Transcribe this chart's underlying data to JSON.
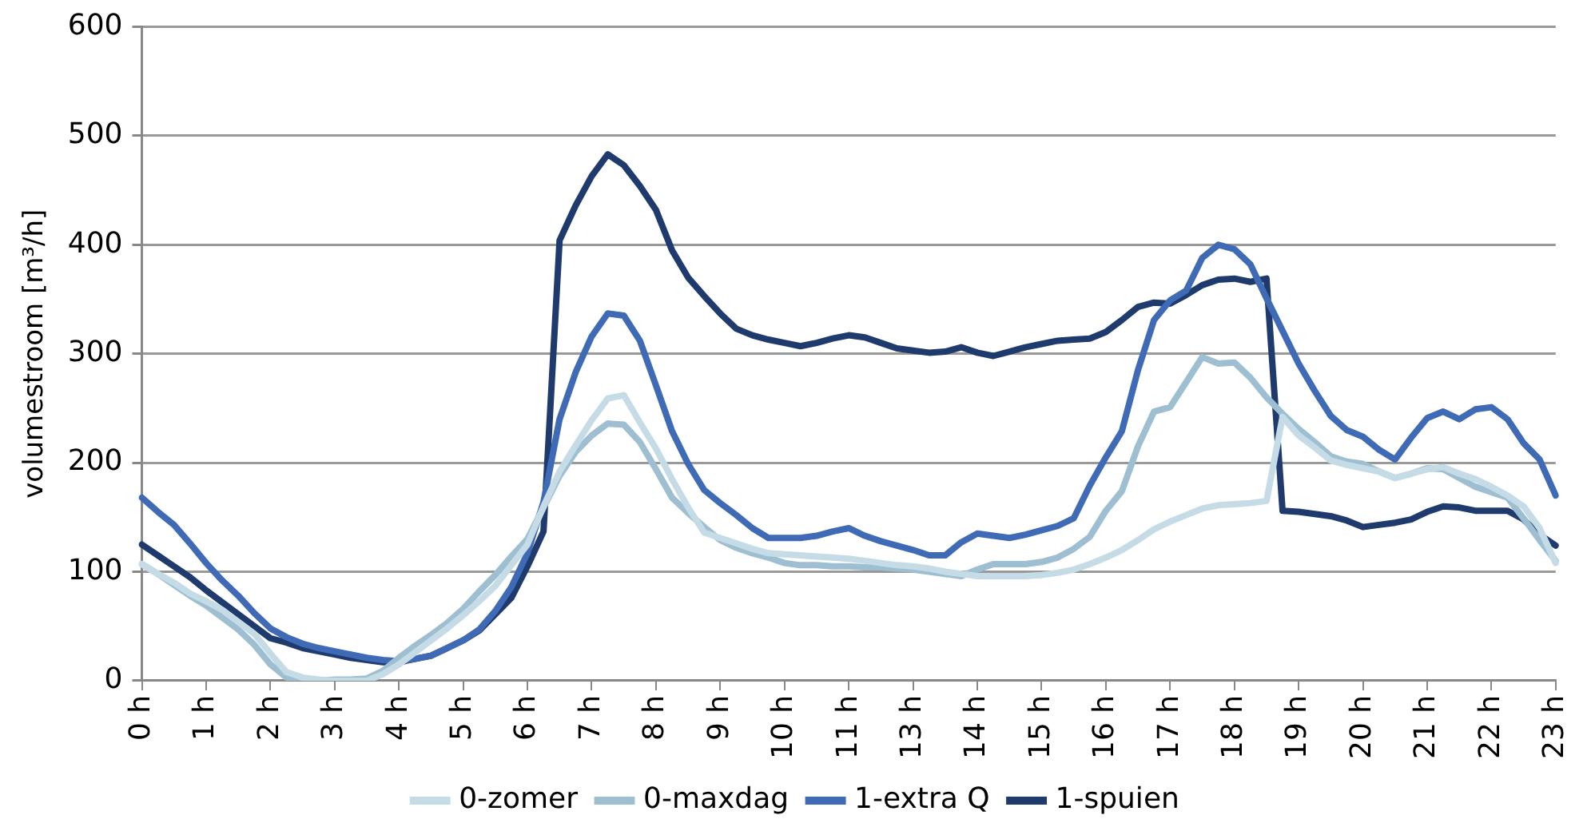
{
  "chart_data": {
    "type": "line",
    "ylabel": "volumestroom [m³/h]",
    "ylim": [
      0,
      600
    ],
    "yticks": [
      0,
      100,
      200,
      300,
      400,
      500,
      600
    ],
    "categories": [
      "0 h",
      null,
      null,
      null,
      "1 h",
      null,
      null,
      null,
      "2 h",
      null,
      null,
      null,
      "3 h",
      null,
      null,
      null,
      "4 h",
      null,
      null,
      null,
      "5 h",
      null,
      null,
      null,
      "6 h",
      null,
      null,
      null,
      "7 h",
      null,
      null,
      null,
      "8 h",
      null,
      null,
      null,
      "9 h",
      null,
      null,
      null,
      "10 h",
      null,
      null,
      null,
      "11 h",
      null,
      null,
      null,
      "13 h",
      null,
      null,
      null,
      "14 h",
      null,
      null,
      null,
      "15 h",
      null,
      null,
      null,
      "16 h",
      null,
      null,
      null,
      "17 h",
      null,
      null,
      null,
      "18 h",
      null,
      null,
      null,
      "19 h",
      null,
      null,
      null,
      "20 h",
      null,
      null,
      null,
      "21 h",
      null,
      null,
      null,
      "22 h",
      null,
      null,
      null,
      "23 h"
    ],
    "grid": "y",
    "legend": "bottom",
    "marker": "none",
    "line_style": "solid",
    "series": [
      {
        "name": "0-zomer",
        "color": "#c5dce6",
        "values": [
          107,
          98,
          90,
          80,
          73,
          65,
          54,
          43,
          25,
          8,
          3,
          1,
          0,
          0,
          0,
          6,
          15,
          26,
          37,
          48,
          60,
          73,
          87,
          106,
          125,
          160,
          192,
          216,
          239,
          259,
          262,
          237,
          213,
          185,
          159,
          136,
          131,
          126,
          121,
          117,
          116,
          115,
          114,
          113,
          112,
          110,
          108,
          106,
          105,
          103,
          100,
          98,
          96,
          96,
          96,
          96,
          97,
          99,
          102,
          107,
          113,
          120,
          129,
          139,
          146,
          152,
          158,
          161,
          162,
          163,
          165,
          242,
          225,
          214,
          202,
          198,
          195,
          192,
          186,
          190,
          194,
          196,
          190,
          185,
          178,
          170,
          160,
          140,
          108
        ]
      },
      {
        "name": "0-maxdag",
        "color": "#9dbfd1",
        "values": [
          107,
          98,
          88,
          78,
          69,
          58,
          47,
          33,
          15,
          3,
          1,
          0,
          1,
          1,
          2,
          9,
          21,
          32,
          42,
          53,
          66,
          82,
          97,
          114,
          130,
          159,
          188,
          210,
          225,
          236,
          235,
          219,
          194,
          168,
          154,
          141,
          129,
          122,
          117,
          113,
          108,
          106,
          106,
          105,
          105,
          104,
          104,
          103,
          102,
          100,
          98,
          96,
          102,
          107,
          107,
          107,
          109,
          113,
          121,
          132,
          156,
          174,
          215,
          247,
          251,
          274,
          297,
          291,
          292,
          278,
          260,
          245,
          231,
          219,
          206,
          201,
          199,
          192,
          186,
          190,
          195,
          194,
          186,
          178,
          173,
          168,
          149,
          129,
          110
        ]
      },
      {
        "name": "1-extra Q",
        "color": "#3f6ab5",
        "values": [
          168,
          155,
          143,
          126,
          108,
          92,
          78,
          62,
          48,
          40,
          34,
          30,
          27,
          24,
          21,
          19,
          18,
          20,
          23,
          30,
          37,
          47,
          64,
          86,
          117,
          164,
          240,
          283,
          316,
          337,
          335,
          312,
          271,
          229,
          199,
          175,
          163,
          152,
          140,
          131,
          131,
          131,
          133,
          137,
          140,
          133,
          128,
          124,
          120,
          115,
          115,
          127,
          135,
          133,
          131,
          134,
          138,
          142,
          149,
          179,
          205,
          229,
          285,
          331,
          349,
          358,
          388,
          400,
          396,
          382,
          351,
          321,
          291,
          266,
          243,
          230,
          224,
          212,
          203,
          223,
          241,
          247,
          240,
          249,
          251,
          240,
          218,
          203,
          170
        ]
      },
      {
        "name": "1-spuien",
        "color": "#1f3b6e",
        "values": [
          125,
          115,
          105,
          95,
          83,
          72,
          61,
          50,
          39,
          35,
          30,
          27,
          24,
          21,
          19,
          17,
          17,
          20,
          23,
          30,
          37,
          46,
          61,
          76,
          105,
          137,
          404,
          436,
          463,
          483,
          473,
          454,
          432,
          395,
          370,
          353,
          337,
          323,
          317,
          313,
          310,
          307,
          310,
          314,
          317,
          315,
          310,
          305,
          303,
          301,
          302,
          306,
          301,
          298,
          302,
          306,
          309,
          312,
          313,
          314,
          320,
          331,
          343,
          347,
          346,
          354,
          363,
          368,
          369,
          366,
          369,
          156,
          155,
          153,
          151,
          147,
          141,
          143,
          145,
          148,
          155,
          160,
          159,
          156,
          156,
          156,
          148,
          134,
          124
        ]
      }
    ]
  }
}
